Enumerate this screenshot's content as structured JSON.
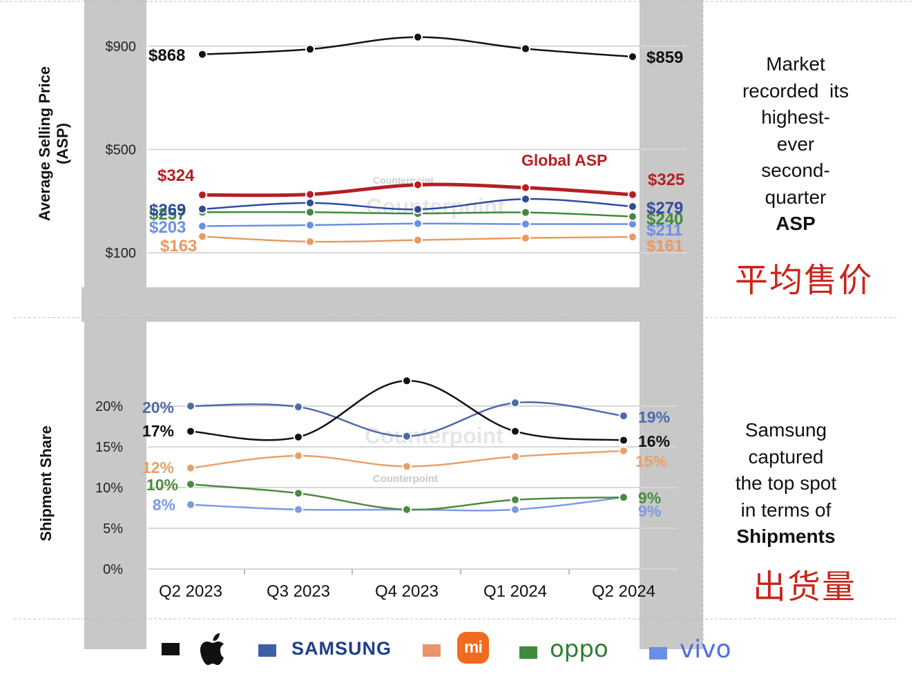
{
  "chart_data": [
    {
      "type": "line",
      "ylabel": "Average Selling Price\n(ASP)",
      "ylim": [
        0,
        1000
      ],
      "yticks": [
        "$900",
        "$500",
        "$100"
      ],
      "categories": [
        "Q2 2023",
        "Q3 2023",
        "Q4 2023",
        "Q1 2024",
        "Q2 2024"
      ],
      "series": [
        {
          "key": "apple",
          "values": [
            868,
            888,
            935,
            890,
            859
          ],
          "color": "#111111",
          "start_label": "$868",
          "end_label": "$859"
        },
        {
          "key": "global",
          "name": "Global ASP",
          "values": [
            324,
            326,
            363,
            352,
            325
          ],
          "color": "#b51f24",
          "start_label": "$324",
          "end_label": "$325"
        },
        {
          "key": "samsung",
          "values": [
            269,
            293,
            268,
            308,
            279
          ],
          "color": "#2f4b9e",
          "start_label": "$269",
          "end_label": "$279"
        },
        {
          "key": "oppo",
          "values": [
            257,
            257,
            252,
            256,
            240
          ],
          "color": "#3f8a3c",
          "start_label": "$257",
          "end_label": "$240"
        },
        {
          "key": "vivo",
          "values": [
            203,
            207,
            213,
            211,
            211
          ],
          "color": "#6b8fe6",
          "start_label": "$203",
          "end_label": "$211"
        },
        {
          "key": "xiaomi",
          "values": [
            163,
            143,
            149,
            157,
            161
          ],
          "color": "#e89a60",
          "start_label": "$163",
          "end_label": "$161"
        }
      ]
    },
    {
      "type": "line",
      "ylabel": "Shipment Share",
      "ylim": [
        0,
        25
      ],
      "yticks": [
        "20%",
        "15%",
        "10%",
        "5%",
        "0%"
      ],
      "categories": [
        "Q2 2023",
        "Q3 2023",
        "Q4 2023",
        "Q1 2024",
        "Q2 2024"
      ],
      "series": [
        {
          "key": "apple",
          "values": [
            16.9,
            16.2,
            23.1,
            16.9,
            15.8
          ],
          "color": "#111111",
          "start_label": "17%",
          "end_label": "16%"
        },
        {
          "key": "samsung",
          "values": [
            20.0,
            19.9,
            16.3,
            20.4,
            18.8
          ],
          "color": "#4d6aa8",
          "start_label": "20%",
          "end_label": "19%"
        },
        {
          "key": "xiaomi",
          "values": [
            12.4,
            13.9,
            12.6,
            13.8,
            14.5
          ],
          "color": "#e8a06a",
          "start_label": "12%",
          "end_label": "15%"
        },
        {
          "key": "oppo",
          "values": [
            10.4,
            9.3,
            7.3,
            8.5,
            8.8
          ],
          "color": "#4b8a3f",
          "start_label": "10%",
          "end_label": "9%"
        },
        {
          "key": "vivo",
          "values": [
            7.9,
            7.3,
            7.3,
            7.3,
            8.8
          ],
          "color": "#7d9ae6",
          "start_label": "8%",
          "end_label": "9%"
        }
      ]
    }
  ],
  "notes": {
    "asp_lines": [
      "Market",
      "recorded  its",
      "highest-",
      "ever",
      "second-",
      "quarter"
    ],
    "asp_bold": "ASP",
    "asp_cn": "平均售价",
    "ship_lines": [
      "Samsung",
      "captured",
      "the top spot",
      "in terms of"
    ],
    "ship_bold": "Shipments",
    "ship_cn": "出货量"
  },
  "watermark": "Counterpoint",
  "legend": [
    {
      "key": "apple",
      "color": "#111111",
      "icon": "apple-logo-icon",
      "text": ""
    },
    {
      "key": "samsung",
      "color": "#3d5fa8",
      "icon": "samsung-wordmark",
      "text": "SAMSUNG"
    },
    {
      "key": "xiaomi",
      "color": "#e8956a",
      "icon": "xiaomi-logo-icon",
      "text": "mi"
    },
    {
      "key": "oppo",
      "color": "#3f8a3c",
      "icon": "oppo-wordmark",
      "text": "oppo"
    },
    {
      "key": "vivo",
      "color": "#6b8fe6",
      "icon": "vivo-wordmark",
      "text": "vivo"
    }
  ],
  "colors": {
    "highlight_band": "#c8c8c8",
    "grid": "#d6d6d6",
    "divider": "#bbbbbb"
  }
}
